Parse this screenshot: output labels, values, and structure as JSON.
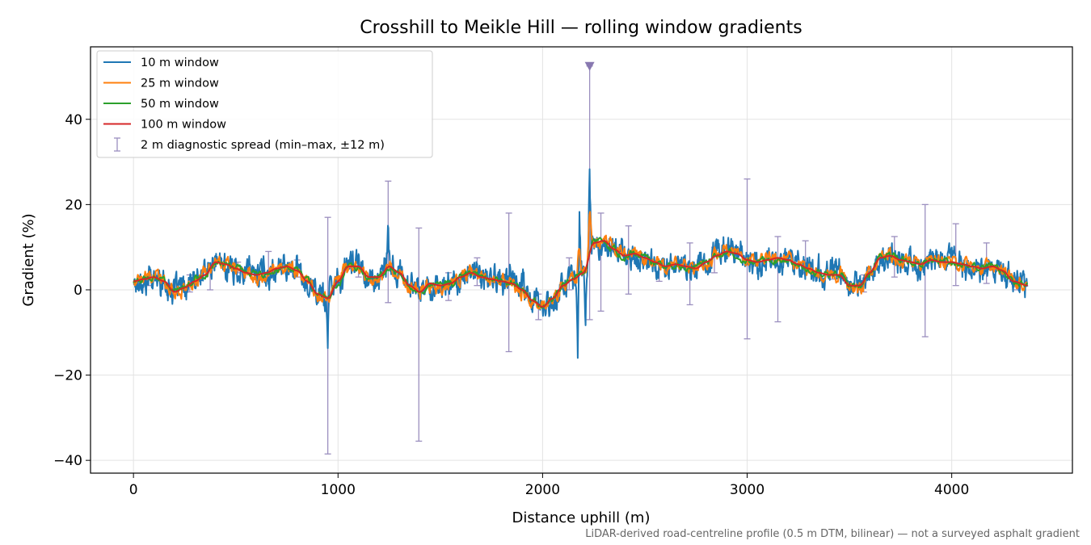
{
  "chart_data": {
    "type": "line",
    "title": "Crosshill to Meikle Hill — rolling window gradients",
    "xlabel": "Distance uphill (m)",
    "ylabel": "Gradient (%)",
    "xlim": [
      -210,
      4590
    ],
    "ylim": [
      -43,
      57
    ],
    "x_ticks": [
      0,
      1000,
      2000,
      3000,
      4000
    ],
    "x_tick_labels": [
      "0",
      "1000",
      "2000",
      "3000",
      "4000"
    ],
    "y_ticks": [
      -40,
      -20,
      0,
      20,
      40
    ],
    "y_tick_labels": [
      "−40",
      "−20",
      "0",
      "20",
      "40"
    ],
    "grid": true,
    "legend_position": "upper-left",
    "footnote": "LiDAR-derived road-centreline profile (0.5 m DTM, bilinear) — not a surveyed asphalt gradient",
    "base_profile": {
      "x": [
        0,
        50,
        100,
        150,
        200,
        250,
        300,
        350,
        400,
        450,
        500,
        550,
        600,
        650,
        700,
        750,
        800,
        850,
        900,
        950,
        1000,
        1050,
        1100,
        1150,
        1200,
        1250,
        1300,
        1350,
        1400,
        1450,
        1500,
        1550,
        1600,
        1650,
        1700,
        1750,
        1800,
        1850,
        1900,
        1950,
        2000,
        2050,
        2100,
        2150,
        2200,
        2250,
        2300,
        2350,
        2400,
        2450,
        2500,
        2550,
        2600,
        2650,
        2700,
        2750,
        2800,
        2850,
        2900,
        2950,
        3000,
        3050,
        3100,
        3150,
        3200,
        3250,
        3300,
        3350,
        3400,
        3450,
        3500,
        3550,
        3600,
        3650,
        3700,
        3750,
        3800,
        3850,
        3900,
        3950,
        4000,
        4050,
        4100,
        4150,
        4200,
        4250,
        4300,
        4370
      ],
      "y": [
        2.0,
        2.5,
        3.0,
        2.0,
        -0.5,
        0.5,
        2.0,
        3.5,
        6.5,
        6.0,
        5.0,
        4.0,
        3.5,
        4.0,
        5.0,
        5.5,
        4.5,
        2.0,
        -1.0,
        -2.0,
        2.0,
        5.5,
        5.5,
        3.0,
        3.0,
        5.5,
        4.0,
        1.0,
        -0.5,
        1.5,
        1.0,
        1.5,
        3.0,
        4.0,
        3.0,
        2.5,
        2.0,
        1.5,
        0.0,
        -2.5,
        -4.0,
        -2.0,
        1.0,
        2.5,
        4.0,
        11.0,
        11.5,
        9.5,
        8.0,
        8.5,
        7.5,
        6.5,
        5.5,
        6.0,
        5.5,
        5.0,
        6.5,
        8.0,
        9.0,
        8.5,
        7.0,
        6.5,
        7.0,
        7.5,
        7.0,
        6.0,
        5.0,
        4.0,
        3.5,
        3.5,
        1.0,
        1.0,
        4.0,
        7.5,
        8.0,
        7.0,
        6.5,
        6.0,
        7.0,
        6.5,
        6.5,
        6.0,
        5.5,
        5.0,
        5.5,
        4.5,
        2.0,
        1.0
      ]
    },
    "series": [
      {
        "name": "10 m window",
        "color": "#1f77b4",
        "noise": 2.8
      },
      {
        "name": "25 m window",
        "color": "#ff7f0e",
        "noise": 1.5
      },
      {
        "name": "50 m window",
        "color": "#2ca02c",
        "noise": 0.8
      },
      {
        "name": "100 m window",
        "color": "#d62728",
        "noise": 0.0
      }
    ],
    "spikes": [
      {
        "x": 950,
        "y": -13
      },
      {
        "x": 2180,
        "y": 20.5
      },
      {
        "x": 2172,
        "y": -15
      },
      {
        "x": 2230,
        "y": 28
      },
      {
        "x": 1245,
        "y": 14
      },
      {
        "x": 2210,
        "y": -5
      }
    ],
    "diagnostic_spread": {
      "name": "2 m diagnostic spread (min–max, ±12 m)",
      "color": "#9b8fbf",
      "bars": [
        {
          "x": 75,
          "min": 1,
          "max": 3.5
        },
        {
          "x": 275,
          "min": -0.5,
          "max": 3.5
        },
        {
          "x": 375,
          "min": 0,
          "max": 5.5
        },
        {
          "x": 510,
          "min": 4,
          "max": 6.5
        },
        {
          "x": 660,
          "min": 3.5,
          "max": 9
        },
        {
          "x": 800,
          "min": 3,
          "max": 7
        },
        {
          "x": 950,
          "min": -38.5,
          "max": 17
        },
        {
          "x": 1100,
          "min": 3,
          "max": 5.5
        },
        {
          "x": 1245,
          "min": -3,
          "max": 25.5
        },
        {
          "x": 1395,
          "min": -35.5,
          "max": 14.5
        },
        {
          "x": 1540,
          "min": -2.5,
          "max": 4
        },
        {
          "x": 1680,
          "min": 1,
          "max": 7.5
        },
        {
          "x": 1835,
          "min": -14.5,
          "max": 18
        },
        {
          "x": 1980,
          "min": -7,
          "max": -1
        },
        {
          "x": 2130,
          "min": 0,
          "max": 7.5
        },
        {
          "x": 2230,
          "min": -7,
          "max": 52.5
        },
        {
          "x": 2285,
          "min": -5,
          "max": 18
        },
        {
          "x": 2420,
          "min": -1,
          "max": 15
        },
        {
          "x": 2570,
          "min": 2,
          "max": 6.5
        },
        {
          "x": 2720,
          "min": -3.5,
          "max": 11
        },
        {
          "x": 2840,
          "min": 4,
          "max": 10
        },
        {
          "x": 3000,
          "min": -11.5,
          "max": 26
        },
        {
          "x": 3150,
          "min": -7.5,
          "max": 12.5
        },
        {
          "x": 3285,
          "min": 4,
          "max": 11.5
        },
        {
          "x": 3420,
          "min": 2.5,
          "max": 6
        },
        {
          "x": 3570,
          "min": -0.5,
          "max": 3.5
        },
        {
          "x": 3720,
          "min": 3,
          "max": 12.5
        },
        {
          "x": 3870,
          "min": -11,
          "max": 20
        },
        {
          "x": 4020,
          "min": 1,
          "max": 15.5
        },
        {
          "x": 4170,
          "min": 1.5,
          "max": 11
        },
        {
          "x": 4320,
          "min": 0,
          "max": 3
        }
      ],
      "marker": {
        "x": 2230,
        "y": 52.5
      }
    }
  }
}
